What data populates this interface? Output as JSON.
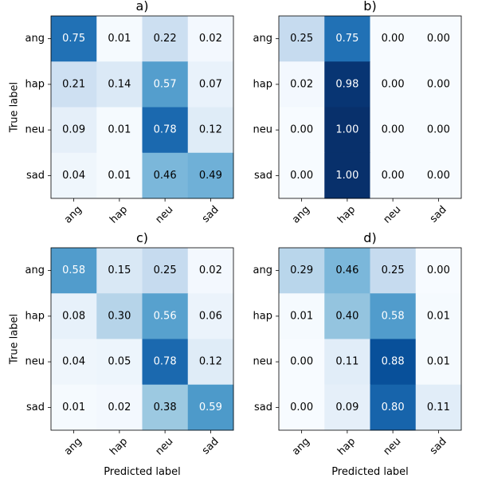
{
  "chart_data": [
    {
      "type": "heatmap",
      "title": "a)",
      "xlabel": "",
      "ylabel": "True label",
      "x_categories": [
        "ang",
        "hap",
        "neu",
        "sad"
      ],
      "y_categories": [
        "ang",
        "hap",
        "neu",
        "sad"
      ],
      "values": [
        [
          0.75,
          0.01,
          0.22,
          0.02
        ],
        [
          0.21,
          0.14,
          0.57,
          0.07
        ],
        [
          0.09,
          0.01,
          0.78,
          0.12
        ],
        [
          0.04,
          0.01,
          0.46,
          0.49
        ]
      ],
      "colormap": "Blues",
      "value_range": [
        0,
        1
      ]
    },
    {
      "type": "heatmap",
      "title": "b)",
      "xlabel": "",
      "ylabel": "",
      "x_categories": [
        "ang",
        "hap",
        "neu",
        "sad"
      ],
      "y_categories": [
        "ang",
        "hap",
        "neu",
        "sad"
      ],
      "values": [
        [
          0.25,
          0.75,
          0.0,
          0.0
        ],
        [
          0.02,
          0.98,
          0.0,
          0.0
        ],
        [
          0.0,
          1.0,
          0.0,
          0.0
        ],
        [
          0.0,
          1.0,
          0.0,
          0.0
        ]
      ],
      "colormap": "Blues",
      "value_range": [
        0,
        1
      ]
    },
    {
      "type": "heatmap",
      "title": "c)",
      "xlabel": "Predicted label",
      "ylabel": "True label",
      "x_categories": [
        "ang",
        "hap",
        "neu",
        "sad"
      ],
      "y_categories": [
        "ang",
        "hap",
        "neu",
        "sad"
      ],
      "values": [
        [
          0.58,
          0.15,
          0.25,
          0.02
        ],
        [
          0.08,
          0.3,
          0.56,
          0.06
        ],
        [
          0.04,
          0.05,
          0.78,
          0.12
        ],
        [
          0.01,
          0.02,
          0.38,
          0.59
        ]
      ],
      "colormap": "Blues",
      "value_range": [
        0,
        1
      ]
    },
    {
      "type": "heatmap",
      "title": "d)",
      "xlabel": "Predicted label",
      "ylabel": "",
      "x_categories": [
        "ang",
        "hap",
        "neu",
        "sad"
      ],
      "y_categories": [
        "ang",
        "hap",
        "neu",
        "sad"
      ],
      "values": [
        [
          0.29,
          0.46,
          0.25,
          0.0
        ],
        [
          0.01,
          0.4,
          0.58,
          0.01
        ],
        [
          0.0,
          0.11,
          0.88,
          0.01
        ],
        [
          0.0,
          0.09,
          0.8,
          0.11
        ]
      ],
      "colormap": "Blues",
      "value_range": [
        0,
        1
      ]
    }
  ],
  "colors": {
    "light": "#f7fbff",
    "dark": "#08306b",
    "text_dark": "#000000",
    "text_light": "#ffffff"
  }
}
